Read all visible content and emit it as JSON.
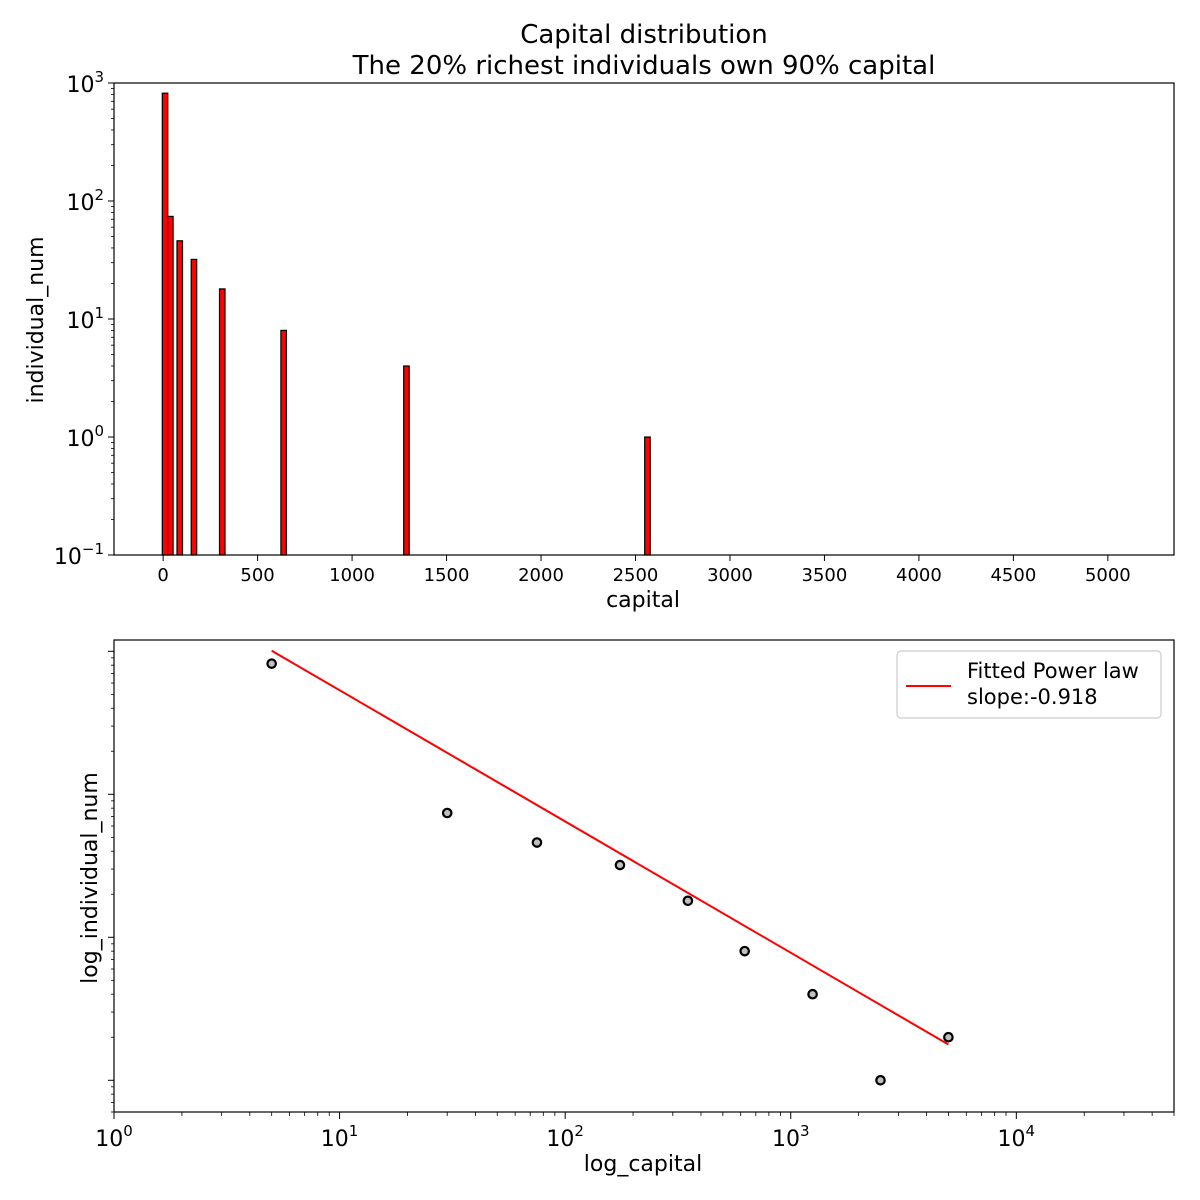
{
  "figure": {
    "title_line1": "Capital distribution",
    "title_line2": "The 20% richest individuals own 90% capital"
  },
  "chart_data": [
    {
      "type": "bar",
      "xlabel": "capital",
      "ylabel": "individual_num",
      "xlim": [
        -260,
        5350
      ],
      "ylim": [
        0.1,
        1000
      ],
      "yscale": "log",
      "xticks": [
        0,
        500,
        1000,
        1500,
        2000,
        2500,
        3000,
        3500,
        4000,
        4500,
        5000
      ],
      "ytick_labels": [
        {
          "value": 1000,
          "base": "10",
          "exp": "3"
        },
        {
          "value": 100,
          "base": "10",
          "exp": "2"
        },
        {
          "value": 10,
          "base": "10",
          "exp": "1"
        },
        {
          "value": 1,
          "base": "10",
          "exp": "0"
        },
        {
          "value": 0.1,
          "base": "10",
          "exp": "−1"
        }
      ],
      "bar_color": "#ff0000",
      "bar_edge_color": "#000000",
      "bars": [
        {
          "x": 10,
          "value": 820
        },
        {
          "x": 38,
          "value": 74
        },
        {
          "x": 88,
          "value": 46
        },
        {
          "x": 163,
          "value": 32
        },
        {
          "x": 313,
          "value": 18
        },
        {
          "x": 638,
          "value": 8
        },
        {
          "x": 1288,
          "value": 4
        },
        {
          "x": 2563,
          "value": 1
        }
      ],
      "grid": false
    },
    {
      "type": "scatter",
      "xlabel": "log_capital",
      "ylabel": "log_individual_num",
      "xscale": "log",
      "yscale": "log",
      "xlim": [
        1,
        50000
      ],
      "ylim": [
        0.6,
        1200
      ],
      "xtick_labels": [
        {
          "value": 1,
          "base": "10",
          "exp": "0"
        },
        {
          "value": 10,
          "base": "10",
          "exp": "1"
        },
        {
          "value": 100,
          "base": "10",
          "exp": "2"
        },
        {
          "value": 1000,
          "base": "10",
          "exp": "3"
        },
        {
          "value": 10000,
          "base": "10",
          "exp": "4"
        }
      ],
      "points": [
        {
          "x": 5,
          "y": 820
        },
        {
          "x": 30,
          "y": 74
        },
        {
          "x": 75,
          "y": 46
        },
        {
          "x": 175,
          "y": 32
        },
        {
          "x": 350,
          "y": 18
        },
        {
          "x": 625,
          "y": 8
        },
        {
          "x": 1250,
          "y": 4
        },
        {
          "x": 2500,
          "y": 1
        },
        {
          "x": 5000,
          "y": 2
        }
      ],
      "series": [
        {
          "name": "Fitted Power law\nslope:-0.918",
          "legend_line1": "Fitted Power law",
          "legend_line2": "slope:-0.918",
          "slope": -0.918,
          "x_start": 5,
          "x_end": 5000,
          "y_start": 1010,
          "color": "#ff0000"
        }
      ],
      "point_edge_color": "#000000",
      "point_face_color": "#bfbfbf",
      "legend": "top-right",
      "grid": false
    }
  ]
}
